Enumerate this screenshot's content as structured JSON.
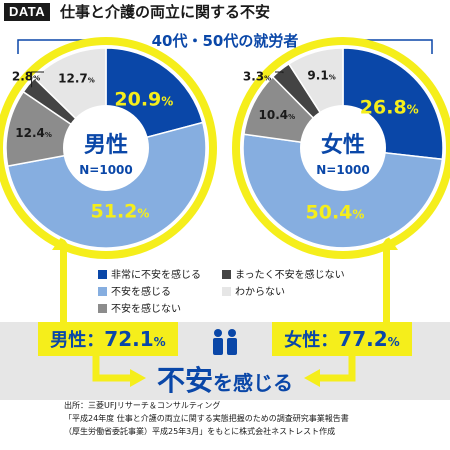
{
  "header": {
    "tag": "DATA",
    "title": "仕事と介護の両立に関する不安"
  },
  "colors": {
    "very_anxious": "#0a47a8",
    "anxious": "#86aee0",
    "not_anxious": "#8c8c8c",
    "not_at_all": "#444444",
    "unknown": "#e6e6e6",
    "highlight": "#f5ee1b",
    "band": "#e6e6e6",
    "title_blue": "#0a47a8"
  },
  "chart_data": {
    "type": "pie",
    "title": "40代・50代の就労者",
    "categories": [
      "非常に不安を感じる",
      "不安を感じる",
      "不安を感じない",
      "まったく不安を感じない",
      "わからない"
    ],
    "pies": [
      {
        "label": "男性",
        "sample": "N=1000",
        "values": [
          20.9,
          51.2,
          12.4,
          2.8,
          12.7
        ],
        "value_labels": [
          "20.9",
          "51.2",
          "12.4",
          "2.8",
          "12.7"
        ],
        "total_label": "男性：72.1",
        "total_value": 72.1
      },
      {
        "label": "女性",
        "sample": "N=1000",
        "values": [
          26.8,
          50.4,
          10.4,
          3.3,
          9.1
        ],
        "value_labels": [
          "26.8",
          "50.4",
          "10.4",
          "3.3",
          "9.1"
        ],
        "total_label": "女性：77.2",
        "total_value": 77.2
      }
    ],
    "unit": "%",
    "conclusion": "不安を感じる"
  },
  "legend": {
    "items": [
      {
        "label": "非常に不安を感じる",
        "color": "#0a47a8"
      },
      {
        "label": "不安を感じる",
        "color": "#86aee0"
      },
      {
        "label": "不安を感じない",
        "color": "#8c8c8c"
      },
      {
        "label": "まったく不安を感じない",
        "color": "#444444"
      },
      {
        "label": "わからない",
        "color": "#e6e6e6"
      }
    ]
  },
  "source": {
    "line1": "出所：三菱UFJリサーチ＆コンサルティング",
    "line2": "「平成24年度 仕事と介護の両立に関する実態把握のための調査研究事業報告書",
    "line3": "（厚生労働省委託事業）平成25年3月」をもとに株式会社ネストレスト作成"
  }
}
